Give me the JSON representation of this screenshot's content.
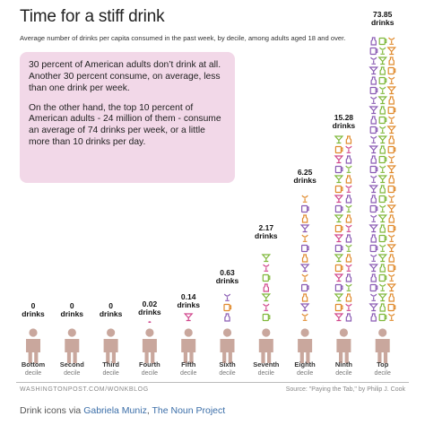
{
  "header": {
    "title": "Time for a stiff drink",
    "subtitle": "Average number of drinks per capita consumed in the past week, by decile, among adults aged 18 and over."
  },
  "callout": {
    "paragraph1": "30 percent of American adults don’t drink at all. Another 30 percent consume, on average, less than one drink per week.",
    "paragraph2": "On the other hand, the top 10 percent of American adults - 24 million of them - consume an average of 74 drinks per week, or a little more than 10 drinks per day."
  },
  "chart_data": {
    "type": "bar",
    "title": "Time for a stiff drink",
    "subtitle": "Average number of drinks per capita consumed in the past week, by decile, among adults aged 18 and over.",
    "xlabel": "",
    "ylabel": "",
    "categories": [
      "Bottom",
      "Second",
      "Third",
      "Fourth",
      "Fifth",
      "Sixth",
      "Seventh",
      "Eighth",
      "Ninth",
      "Top"
    ],
    "category_sublabel": "decile",
    "values": [
      0,
      0,
      0,
      0.02,
      0.14,
      0.63,
      2.17,
      6.25,
      15.28,
      73.85
    ],
    "value_labels": [
      "0",
      "0",
      "0",
      "0.02",
      "0.14",
      "0.63",
      "2.17",
      "6.25",
      "15.28",
      "73.85"
    ],
    "unit_label": "drinks",
    "scale": "log",
    "grid": false,
    "colors": {
      "person": "#c9a79d",
      "pink": "#d0468c",
      "purple": "#8a5bb3",
      "green": "#7fb83a",
      "orange": "#e08a2c",
      "callout_bg": "#f2d8e8"
    }
  },
  "footer": {
    "left_credit": "WASHINGTONPOST.COM/WONKBLOG",
    "right_credit": "Source: \"Paying the Tab,\" by Philip J. Cook",
    "drink_credit_prefix": "Drink icons via ",
    "drink_credit_author": "Gabriela Muniz",
    "drink_credit_separator": ", ",
    "drink_credit_project": "The Noun Project"
  }
}
